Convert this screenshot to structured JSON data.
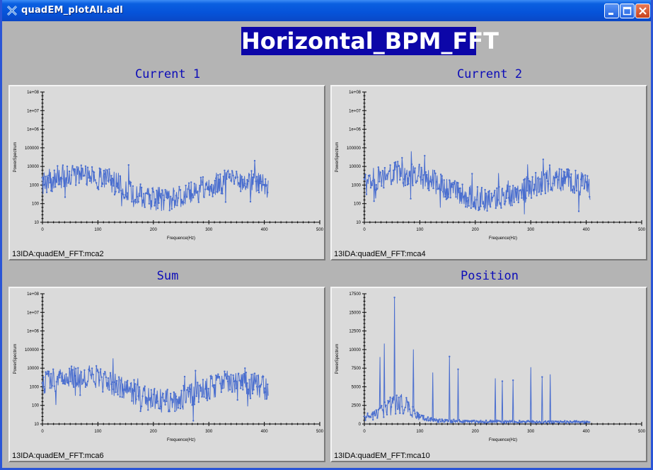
{
  "window": {
    "title": "quadEM_plotAll.adl"
  },
  "banner": "Horizontal_BPM_FFT",
  "plots": [
    {
      "title": "Current 1",
      "pv": "13IDA:quadEM_FFT:mca2",
      "xlabel": "Frequence(Hz)",
      "ylabel": "PowerSpectrum",
      "scale": "log",
      "yticks": [
        "1e+08",
        "1e+07",
        "1e+06",
        "100000",
        "10000",
        "1000",
        "100",
        "10"
      ],
      "xticks": [
        "0",
        "100",
        "200",
        "300",
        "400",
        "500"
      ]
    },
    {
      "title": "Current 2",
      "pv": "13IDA:quadEM_FFT:mca4",
      "xlabel": "Frequence(Hz)",
      "ylabel": "PowerSpectrum",
      "scale": "log",
      "yticks": [
        "1e+08",
        "1e+07",
        "1e+06",
        "100000",
        "10000",
        "1000",
        "100",
        "10"
      ],
      "xticks": [
        "0",
        "100",
        "200",
        "300",
        "400",
        "500"
      ]
    },
    {
      "title": "Sum",
      "pv": "13IDA:quadEM_FFT:mca6",
      "xlabel": "Frequence(Hz)",
      "ylabel": "PowerSpectrum",
      "scale": "log",
      "yticks": [
        "1e+08",
        "1e+07",
        "1e+06",
        "100000",
        "10000",
        "1000",
        "100",
        "10"
      ],
      "xticks": [
        "0",
        "100",
        "200",
        "300",
        "400",
        "500"
      ]
    },
    {
      "title": "Position",
      "pv": "13IDA:quadEM_FFT:mca10",
      "xlabel": "Frequence(Hz)",
      "ylabel": "PowerSpectrum",
      "scale": "linear",
      "yticks": [
        "17500",
        "15000",
        "12500",
        "10000",
        "7500",
        "5000",
        "2500",
        "0"
      ],
      "xticks": [
        "0",
        "100",
        "200",
        "300",
        "400",
        "500"
      ]
    }
  ],
  "colors": {
    "trace": "#4a6ecf",
    "title": "#0c0cb8",
    "banner": "#0c06a8"
  }
}
